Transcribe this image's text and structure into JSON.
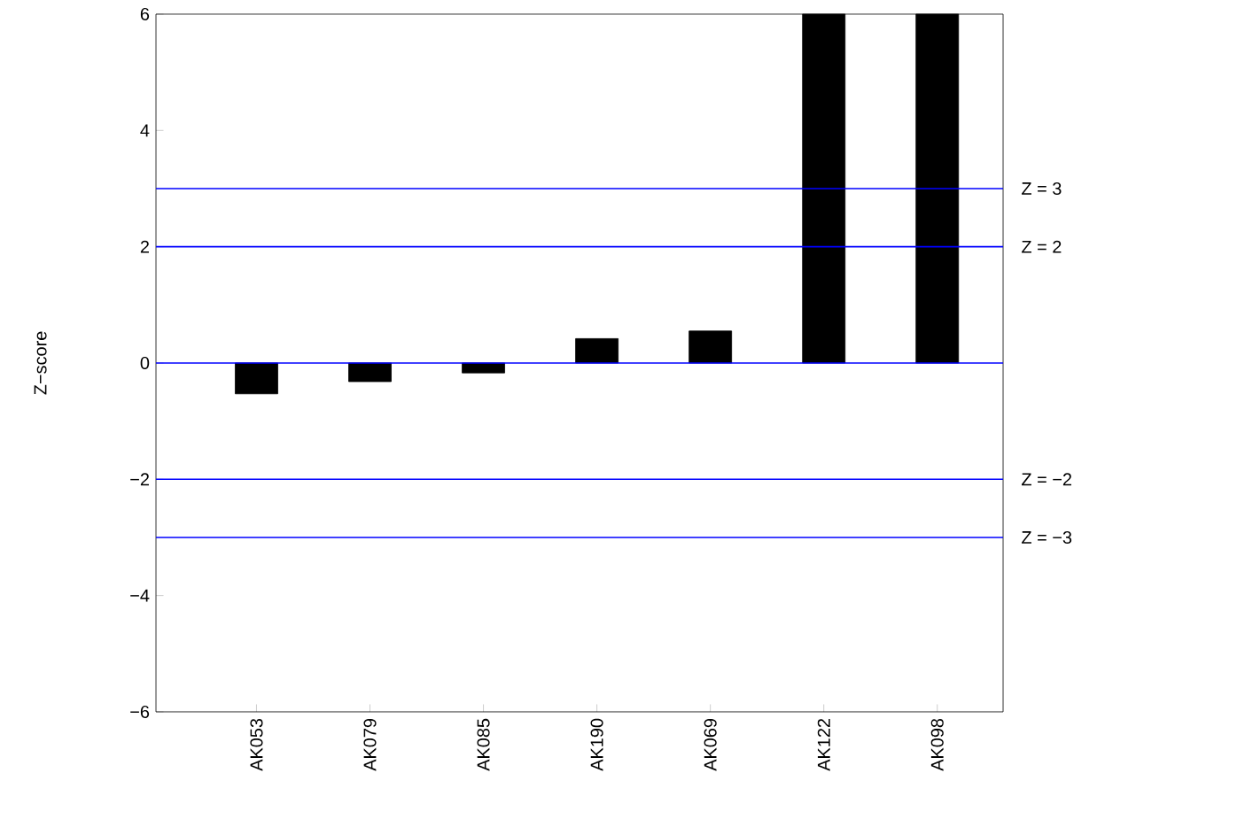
{
  "chart_data": {
    "type": "bar",
    "ylabel": "Z−score",
    "categories": [
      "AK053",
      "AK079",
      "AK085",
      "AK190",
      "AK069",
      "AK122",
      "AK098"
    ],
    "values": [
      -0.53,
      -0.32,
      -0.17,
      0.42,
      0.55,
      6,
      6
    ],
    "color": "#000000",
    "ylim": [
      -6,
      6
    ],
    "yticks": [
      {
        "value": -6,
        "label": "−6"
      },
      {
        "value": -4,
        "label": "−4"
      },
      {
        "value": -2,
        "label": "−2"
      },
      0,
      2,
      4,
      6
    ],
    "ref_lines": [
      {
        "axis": "y",
        "value": 3,
        "label": "Z = 3",
        "color": "#0000ff"
      },
      {
        "axis": "y",
        "value": 2,
        "label": "Z = 2",
        "color": "#0000ff"
      },
      {
        "axis": "y",
        "value": 0,
        "color": "#0000ff"
      },
      {
        "axis": "y",
        "value": -2,
        "label": "Z = −2",
        "color": "#0000ff"
      },
      {
        "axis": "y",
        "value": -3,
        "label": "Z = −3",
        "color": "#0000ff"
      }
    ],
    "grid": false
  }
}
